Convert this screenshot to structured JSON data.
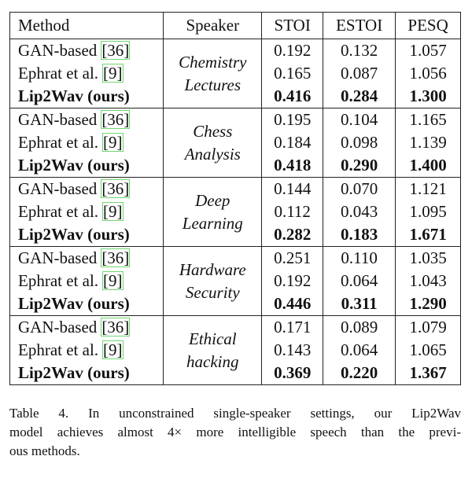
{
  "table": {
    "header": [
      "Method",
      "Speaker",
      "STOI",
      "ESTOI",
      "PESQ"
    ],
    "groups": [
      {
        "speaker": [
          "Chemistry",
          "Lectures"
        ],
        "rows": [
          {
            "method": "GAN-based",
            "cite": "[36]",
            "cells": [
              "0.192",
              "0.132",
              "1.057"
            ]
          },
          {
            "method": "Ephrat et al.",
            "cite": "[9]",
            "cells": [
              "0.165",
              "0.087",
              "1.056"
            ]
          },
          {
            "method": "Lip2Wav (ours)",
            "cells": [
              "0.416",
              "0.284",
              "1.300"
            ]
          }
        ]
      },
      {
        "speaker": [
          "Chess",
          "Analysis"
        ],
        "rows": [
          {
            "method": "GAN-based",
            "cite": "[36]",
            "cells": [
              "0.195",
              "0.104",
              "1.165"
            ]
          },
          {
            "method": "Ephrat et al.",
            "cite": "[9]",
            "cells": [
              "0.184",
              "0.098",
              "1.139"
            ]
          },
          {
            "method": "Lip2Wav (ours)",
            "cells": [
              "0.418",
              "0.290",
              "1.400"
            ]
          }
        ]
      },
      {
        "speaker": [
          "Deep",
          "Learning"
        ],
        "rows": [
          {
            "method": "GAN-based",
            "cite": "[36]",
            "cells": [
              "0.144",
              "0.070",
              "1.121"
            ]
          },
          {
            "method": "Ephrat et al.",
            "cite": "[9]",
            "cells": [
              "0.112",
              "0.043",
              "1.095"
            ]
          },
          {
            "method": "Lip2Wav (ours)",
            "cells": [
              "0.282",
              "0.183",
              "1.671"
            ]
          }
        ]
      },
      {
        "speaker": [
          "Hardware",
          "Security"
        ],
        "rows": [
          {
            "method": "GAN-based",
            "cite": "[36]",
            "cells": [
              "0.251",
              "0.110",
              "1.035"
            ]
          },
          {
            "method": "Ephrat et al.",
            "cite": "[9]",
            "cells": [
              "0.192",
              "0.064",
              "1.043"
            ]
          },
          {
            "method": "Lip2Wav (ours)",
            "cells": [
              "0.446",
              "0.311",
              "1.290"
            ]
          }
        ]
      },
      {
        "speaker": [
          "Ethical",
          "hacking"
        ],
        "rows": [
          {
            "method": "GAN-based",
            "cite": "[36]",
            "cells": [
              "0.171",
              "0.089",
              "1.079"
            ]
          },
          {
            "method": "Ephrat et al.",
            "cite": "[9]",
            "cells": [
              "0.143",
              "0.064",
              "1.065"
            ]
          },
          {
            "method": "Lip2Wav (ours)",
            "cells": [
              "0.369",
              "0.220",
              "1.367"
            ]
          }
        ]
      }
    ]
  },
  "caption": [
    "Table 4. In unconstrained single-speaker settings, our Lip2Wav",
    "model achieves almost 4× more intelligible speech than the previ-",
    "ous methods."
  ]
}
